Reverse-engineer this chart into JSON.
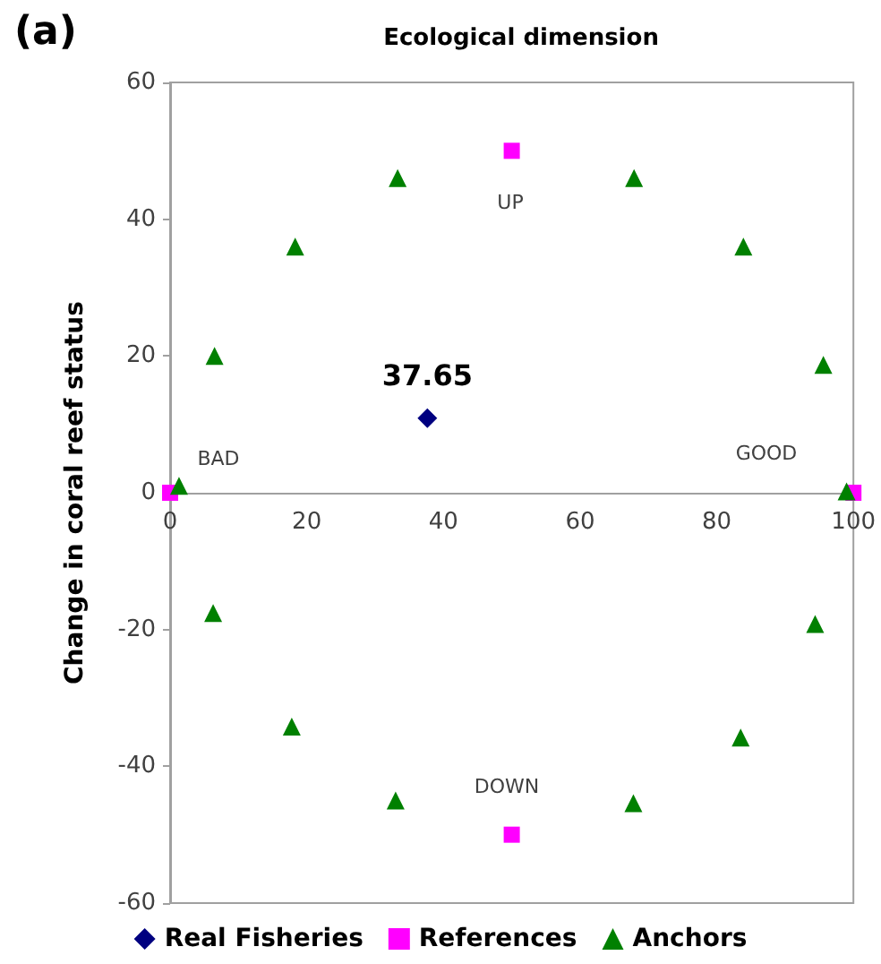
{
  "chart_data": {
    "type": "scatter",
    "title": "Ecological dimension",
    "ylabel": "Change in coral reef status",
    "annotations": [
      "(a)",
      "UP",
      "DOWN",
      "BAD",
      "GOOD",
      {
        "text": "37.65",
        "x": 37.65,
        "y": 10.9
      }
    ],
    "series": [
      {
        "name": "Real Fisheries",
        "color": "#000080",
        "marker": "diamond",
        "x": [
          37.65
        ],
        "values": [
          10.9
        ]
      },
      {
        "name": "References",
        "color": "#ff00ff",
        "marker": "square",
        "x": [
          0,
          100,
          50,
          50
        ],
        "values": [
          0,
          0,
          50,
          -50
        ]
      },
      {
        "name": "Anchors",
        "color": "#008000",
        "marker": "triangle",
        "x": [
          1.3,
          6.5,
          18.3,
          33.3,
          67.9,
          83.9,
          95.6,
          99.0,
          6.3,
          17.8,
          33.0,
          67.8,
          83.5,
          94.4
        ],
        "values": [
          1.0,
          20,
          36,
          46,
          46,
          36,
          18.7,
          0.2,
          -17.6,
          -34.2,
          -45,
          -45.4,
          -35.8,
          -19.2
        ]
      }
    ],
    "xlim": [
      0,
      100
    ],
    "xticks": [
      0,
      20,
      40,
      60,
      80,
      100
    ],
    "ylim": [
      -60,
      60
    ],
    "yticks": [
      -60,
      -40,
      -20,
      0,
      20,
      40,
      60
    ],
    "grid": false,
    "legend": "bottom"
  }
}
